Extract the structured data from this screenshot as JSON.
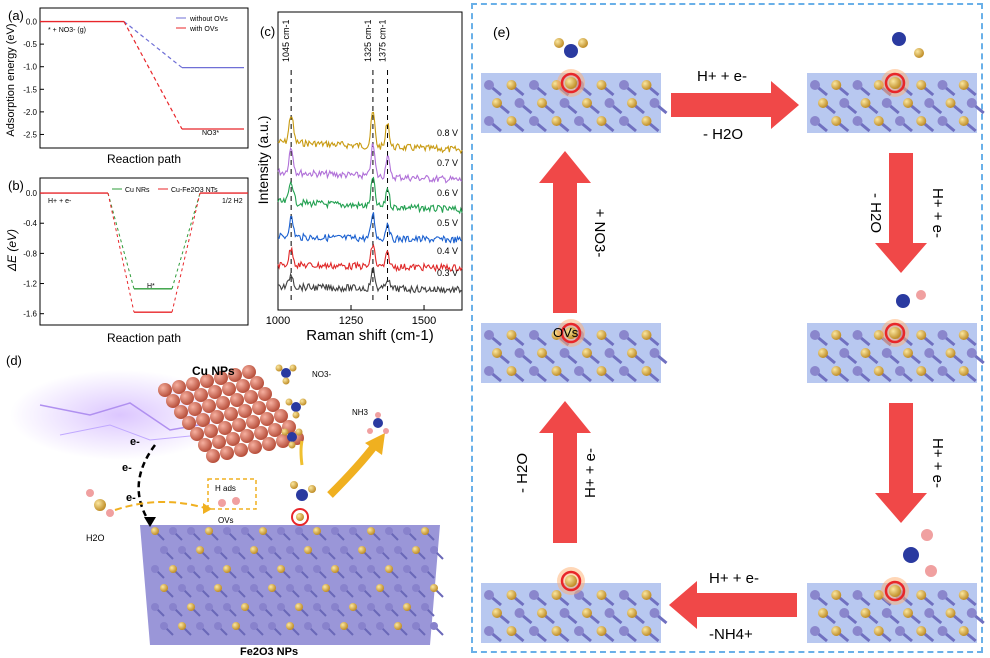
{
  "panel_labels": {
    "a": "(a)",
    "b": "(b)",
    "c": "(c)",
    "d": "(d)",
    "e": "(e)"
  },
  "panel_a": {
    "ylabel": "Adsorption energy (eV)",
    "xlabel": "Reaction path",
    "start_label": "* + NO3- (g)",
    "end_label": "NO3*",
    "yticks": [
      "0.0",
      "-0.5",
      "-1.0",
      "-1.5",
      "-2.0",
      "-2.5"
    ],
    "legend": [
      "without OVs",
      "with OVs"
    ]
  },
  "panel_b": {
    "ylabel": "ΔE (eV)",
    "xlabel": "Reaction path",
    "left_label": "H+ + e-",
    "right_label": "1/2 H2",
    "mid_label": "H*",
    "yticks": [
      "0.0",
      "-0.4",
      "-0.8",
      "-1.2",
      "-1.6"
    ],
    "legend": [
      "Cu NRs",
      "Cu-Fe2O3 NTs"
    ]
  },
  "panel_c": {
    "xlabel": "Raman shift (cm-1)",
    "ylabel": "Intensity (a.u.)",
    "xticks": [
      "1000",
      "1250",
      "1500"
    ],
    "peak_labels": [
      "1045 cm-1",
      "1325 cm-1",
      "1375 cm-1"
    ],
    "voltages": [
      "0.8 V",
      "0.7 V",
      "0.6 V",
      "0.5 V",
      "0.4 V",
      "0.3 V"
    ]
  },
  "panel_d": {
    "cu_label": "Cu NPs",
    "no3_label": "NO3-",
    "nh3_label": "NH3",
    "electron_label": "e-",
    "h_ads_label": "H ads",
    "ovs_label": "OVs",
    "h2o_label": "H2O",
    "fe_label": "Fe2O3 NPs"
  },
  "panel_e": {
    "step1_top": "H+ + e-",
    "step1_bottom": "- H2O",
    "step2_a": "- H2O",
    "step2_b": "H+ + e-",
    "step3": "H+ + e-",
    "step4_top": "H+ + e-",
    "step4_bottom": "-NH4+",
    "step5_a": "- H2O",
    "step5_b": "H+ + e-",
    "step6": "+ NO3-",
    "ovs_label": "OVs"
  },
  "colors": {
    "red": "#e8262a",
    "blue": "#6f6fd6",
    "green": "#2e9c3a",
    "arrow": "#f04848",
    "gold": "#e0b040",
    "purple": "#8080c8",
    "dashed_border": "#6ab0e8"
  },
  "chart_data": [
    {
      "type": "line",
      "title": "",
      "xlabel": "Reaction path",
      "ylabel": "Adsorption energy (eV)",
      "ylim": [
        -2.8,
        0.3
      ],
      "series": [
        {
          "name": "without OVs",
          "values": [
            0.0,
            -1.02
          ]
        },
        {
          "name": "with OVs",
          "values": [
            0.0,
            -2.38
          ]
        }
      ]
    },
    {
      "type": "line",
      "title": "",
      "xlabel": "Reaction path",
      "ylabel": "ΔE (eV)",
      "ylim": [
        -1.75,
        0.2
      ],
      "series": [
        {
          "name": "Cu NRs",
          "values": [
            0.0,
            -1.27,
            0.0
          ]
        },
        {
          "name": "Cu-Fe2O3 NTs",
          "values": [
            0.0,
            -1.58,
            0.0
          ]
        }
      ]
    },
    {
      "type": "line",
      "title": "",
      "xlabel": "Raman shift (cm-1)",
      "ylabel": "Intensity (a.u.)",
      "xlim": [
        1000,
        1630
      ],
      "peaks": [
        1045,
        1325,
        1375
      ],
      "series": [
        {
          "name": "0.8 V"
        },
        {
          "name": "0.7 V"
        },
        {
          "name": "0.6 V"
        },
        {
          "name": "0.5 V"
        },
        {
          "name": "0.4 V"
        },
        {
          "name": "0.3 V"
        }
      ]
    }
  ]
}
